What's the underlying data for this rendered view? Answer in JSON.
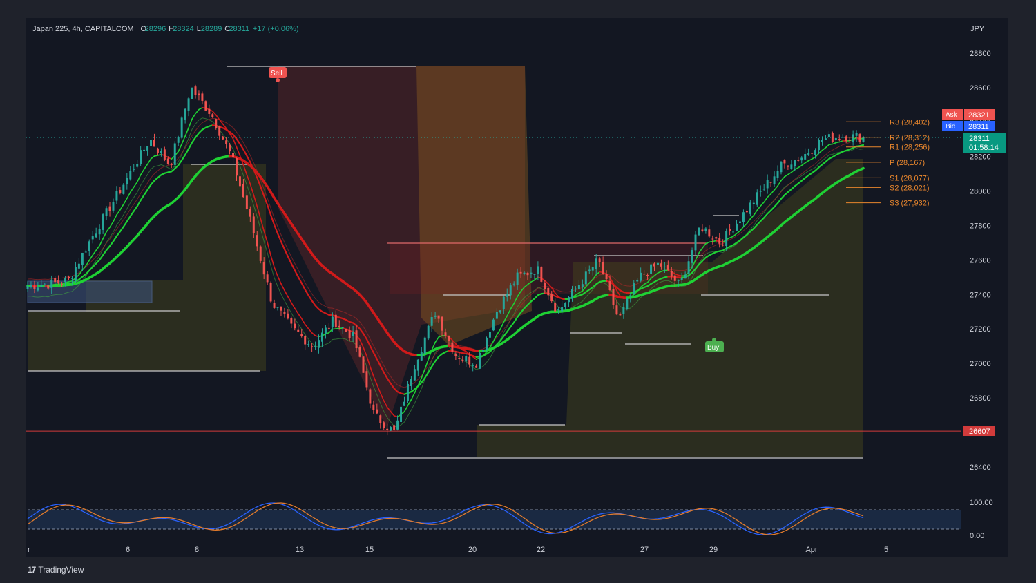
{
  "header": {
    "symbol": "Japan 225, 4h, CAPITALCOM",
    "o_label": "O",
    "o_value": "28296",
    "h_label": "H",
    "h_value": "28324",
    "l_label": "L",
    "l_value": "28289",
    "c_label": "C",
    "c_value": "28311",
    "change": "+17 (+0.06%)",
    "currency": "JPY"
  },
  "colors": {
    "background": "#131722",
    "outer": "#1f222b",
    "up": "#26a69a",
    "down": "#ef5350",
    "ma_green": "#1fd134",
    "ma_red": "#d11a1a",
    "pivot": "#e8862d",
    "stoch_k": "#2962ff",
    "stoch_d": "#e37b2b"
  },
  "price_axis": {
    "ticks": [
      "28800",
      "28600",
      "28400",
      "28200",
      "28000",
      "27800",
      "27600",
      "27400",
      "27200",
      "27000",
      "26800",
      "26600",
      "26400"
    ],
    "ask_label": "Ask",
    "ask_value": "28321",
    "bid_label": "Bid",
    "bid_value": "28311",
    "last_value": "28311",
    "countdown": "01:58:14",
    "hline_value": "26607"
  },
  "pivots": [
    {
      "label": "R3 (28,402)",
      "value": 28402
    },
    {
      "label": "R2 (28,312)",
      "value": 28312
    },
    {
      "label": "R1 (28,256)",
      "value": 28256
    },
    {
      "label": "P (28,167)",
      "value": 28167
    },
    {
      "label": "S1 (28,077)",
      "value": 28077
    },
    {
      "label": "S2 (28,021)",
      "value": 28021
    },
    {
      "label": "S3 (27,932)",
      "value": 27932
    }
  ],
  "signals": {
    "sell": "Sell",
    "buy": "Buy"
  },
  "time_axis": [
    "r",
    "6",
    "8",
    "13",
    "15",
    "20",
    "22",
    "27",
    "29",
    "Apr",
    "5"
  ],
  "oscillator": {
    "upper": "100.00",
    "lower": "0.00"
  },
  "footer": {
    "brand": "TradingView"
  },
  "chart_data": {
    "type": "candlestick",
    "symbol": "Japan 225",
    "timeframe": "4h",
    "ylim": [
      26350,
      28900
    ],
    "x": [
      "r",
      "6",
      "8",
      "13",
      "15",
      "20",
      "22",
      "27",
      "29",
      "Apr",
      "5"
    ],
    "close_path": [
      27450,
      27460,
      27480,
      27700,
      27900,
      28100,
      28300,
      28150,
      28600,
      28450,
      28200,
      27800,
      27350,
      27200,
      27100,
      27250,
      27150,
      26700,
      26600,
      27000,
      27300,
      27050,
      27000,
      27300,
      27500,
      27550,
      27300,
      27450,
      27600,
      27250,
      27500,
      27580,
      27450,
      27800,
      27700,
      27850,
      28000,
      28150,
      28200,
      28300,
      28320,
      28311
    ],
    "moving_averages": [
      "fast",
      "mid",
      "slow"
    ],
    "pivot_levels": [
      28402,
      28312,
      28256,
      28167,
      28077,
      28021,
      27932
    ],
    "horizontal_line": 26607,
    "last_price": 28311
  }
}
